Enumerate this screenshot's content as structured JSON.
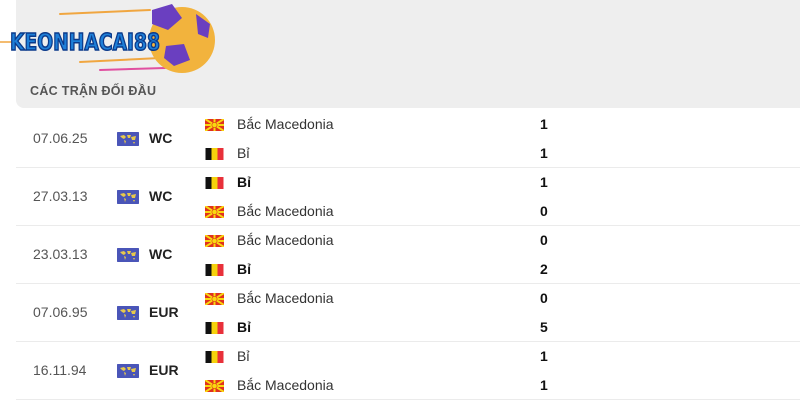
{
  "logo": {
    "text": "KEONHACAI88"
  },
  "section_title": "CÁC TRẬN ĐỐI ĐẦU",
  "colors": {
    "panel": "#eeeeee",
    "competition_icon": "#4a55b8"
  },
  "matches": [
    {
      "date": "07.06.25",
      "competition": "WC",
      "icon": "world-icon",
      "teams": [
        {
          "name": "Bắc Macedonia",
          "flag": "north-macedonia",
          "score": "1",
          "winner": false
        },
        {
          "name": "Bỉ",
          "flag": "belgium",
          "score": "1",
          "winner": false
        }
      ]
    },
    {
      "date": "27.03.13",
      "competition": "WC",
      "icon": "world-icon",
      "teams": [
        {
          "name": "Bỉ",
          "flag": "belgium",
          "score": "1",
          "winner": true
        },
        {
          "name": "Bắc Macedonia",
          "flag": "north-macedonia",
          "score": "0",
          "winner": false
        }
      ]
    },
    {
      "date": "23.03.13",
      "competition": "WC",
      "icon": "world-icon",
      "teams": [
        {
          "name": "Bắc Macedonia",
          "flag": "north-macedonia",
          "score": "0",
          "winner": false
        },
        {
          "name": "Bỉ",
          "flag": "belgium",
          "score": "2",
          "winner": true
        }
      ]
    },
    {
      "date": "07.06.95",
      "competition": "EUR",
      "icon": "world-icon",
      "teams": [
        {
          "name": "Bắc Macedonia",
          "flag": "north-macedonia",
          "score": "0",
          "winner": false
        },
        {
          "name": "Bỉ",
          "flag": "belgium",
          "score": "5",
          "winner": true
        }
      ]
    },
    {
      "date": "16.11.94",
      "competition": "EUR",
      "icon": "world-icon",
      "teams": [
        {
          "name": "Bỉ",
          "flag": "belgium",
          "score": "1",
          "winner": false
        },
        {
          "name": "Bắc Macedonia",
          "flag": "north-macedonia",
          "score": "1",
          "winner": false
        }
      ]
    }
  ]
}
